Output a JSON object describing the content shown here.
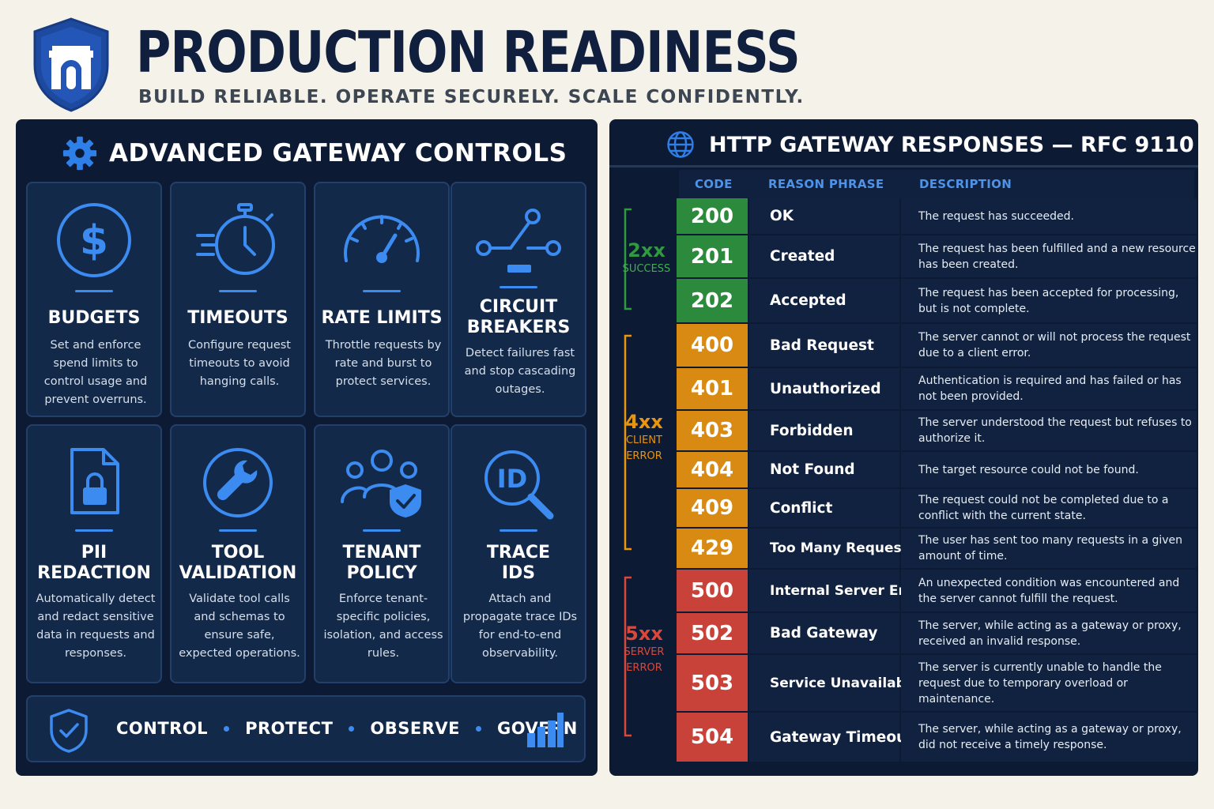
{
  "header": {
    "title": "PRODUCTION READINESS",
    "subtitle": "BUILD RELIABLE. OPERATE SECURELY. SCALE CONFIDENTLY."
  },
  "left": {
    "title": "ADVANCED GATEWAY CONTROLS",
    "cards": [
      {
        "icon": "dollar-icon",
        "title": "BUDGETS",
        "desc": "Set and enforce spend limits to control usage and prevent overruns."
      },
      {
        "icon": "stopwatch-icon",
        "title": "TIMEOUTS",
        "desc": "Configure request timeouts to avoid hanging calls."
      },
      {
        "icon": "gauge-icon",
        "title": "RATE LIMITS",
        "desc": "Throttle requests by rate and burst to protect services."
      },
      {
        "icon": "circuit-breaker-icon",
        "title": "CIRCUIT\nBREAKERS",
        "desc": "Detect failures fast and stop cascading outages."
      },
      {
        "icon": "locked-document-icon",
        "title": "PII\nREDACTION",
        "desc": "Automatically detect and redact sensitive data in requests and responses."
      },
      {
        "icon": "wrench-icon",
        "title": "TOOL\nVALIDATION",
        "desc": "Validate tool calls and schemas to ensure safe, expected operations."
      },
      {
        "icon": "users-shield-icon",
        "title": "TENANT\nPOLICY",
        "desc": "Enforce tenant-specific policies, isolation, and access rules."
      },
      {
        "icon": "id-search-icon",
        "title": "TRACE\nIDS",
        "desc": "Attach and propagate trace IDs for end-to-end observability."
      }
    ],
    "footer": [
      "CONTROL",
      "PROTECT",
      "OBSERVE",
      "GOVERN"
    ]
  },
  "right": {
    "title": "HTTP GATEWAY RESPONSES — RFC 9110",
    "headers": {
      "code": "CODE",
      "reason": "REASON PHRASE",
      "description": "DESCRIPTION"
    },
    "groups": [
      {
        "code": "2xx",
        "label": "SUCCESS",
        "color": "#2f9a3e"
      },
      {
        "code": "4xx",
        "label": "CLIENT\nERROR",
        "color": "#e8950f"
      },
      {
        "code": "5xx",
        "label": "SERVER\nERROR",
        "color": "#d9483a"
      }
    ],
    "rows": [
      {
        "code": "200",
        "reason": "OK",
        "desc": "The request has succeeded.",
        "color": "#2b8a3b"
      },
      {
        "code": "201",
        "reason": "Created",
        "desc": "The request has been fulfilled and a new resource has been created.",
        "color": "#2b8a3b"
      },
      {
        "code": "202",
        "reason": "Accepted",
        "desc": "The request has been accepted for processing, but is not complete.",
        "color": "#2b8a3b"
      },
      {
        "code": "400",
        "reason": "Bad Request",
        "desc": "The server cannot or will not process the request due to a client error.",
        "color": "#d88a12"
      },
      {
        "code": "401",
        "reason": "Unauthorized",
        "desc": "Authentication is required and has failed or has not been provided.",
        "color": "#d88a12"
      },
      {
        "code": "403",
        "reason": "Forbidden",
        "desc": "The server understood the request but refuses to authorize it.",
        "color": "#d88a12"
      },
      {
        "code": "404",
        "reason": "Not Found",
        "desc": "The target resource could not be found.",
        "color": "#d88a12"
      },
      {
        "code": "409",
        "reason": "Conflict",
        "desc": "The request could not be completed due to a conflict with the current state.",
        "color": "#d88a12"
      },
      {
        "code": "429",
        "reason": "Too Many Requests",
        "desc": "The user has sent too many requests in a given amount of time.",
        "color": "#d88a12"
      },
      {
        "code": "500",
        "reason": "Internal Server Error",
        "desc": "An unexpected condition was encountered and the server cannot fulfill the request.",
        "color": "#c9423a"
      },
      {
        "code": "502",
        "reason": "Bad Gateway",
        "desc": "The server, while acting as a gateway or proxy, received an invalid response.",
        "color": "#c9423a"
      },
      {
        "code": "503",
        "reason": "Service Unavailable",
        "desc": "The server is currently unable to handle the request due to temporary overload or maintenance.",
        "color": "#c9423a"
      },
      {
        "code": "504",
        "reason": "Gateway Timeout",
        "desc": "The server, while acting as a gateway or proxy, did not receive a timely response.",
        "color": "#c9423a"
      }
    ]
  }
}
